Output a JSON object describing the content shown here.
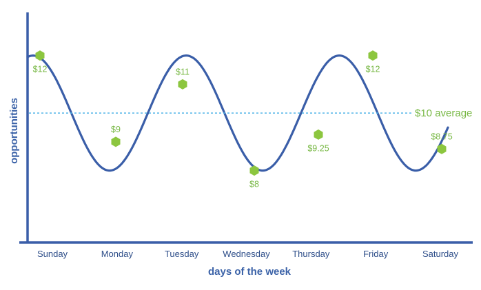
{
  "chart_data": {
    "type": "line",
    "xlabel": "days of the week",
    "ylabel": "opportunities",
    "categories": [
      "Sunday",
      "Monday",
      "Tuesday",
      "Wednesday",
      "Thursday",
      "Friday",
      "Saturday"
    ],
    "series": [
      {
        "values": [
          12,
          9,
          11,
          8,
          9.25,
          12,
          8.75
        ]
      }
    ],
    "point_labels": [
      "$12",
      "$9",
      "$11",
      "$8",
      "$9.25",
      "$12",
      "$8.75"
    ],
    "average": {
      "value": 10,
      "label": "$10 average"
    },
    "trend_curve": {
      "description": "smooth wave",
      "values": [
        12,
        8,
        12,
        8,
        12,
        8
      ]
    },
    "ylim": [
      5.5,
      13.5
    ],
    "grid": false,
    "colors": {
      "axis": "#3a5ea8",
      "curve": "#3a5ea8",
      "points": "#8cc63f",
      "labels": "#78b845",
      "average_line": "#4fb3e8",
      "ticks": "#2f4f8a"
    }
  }
}
